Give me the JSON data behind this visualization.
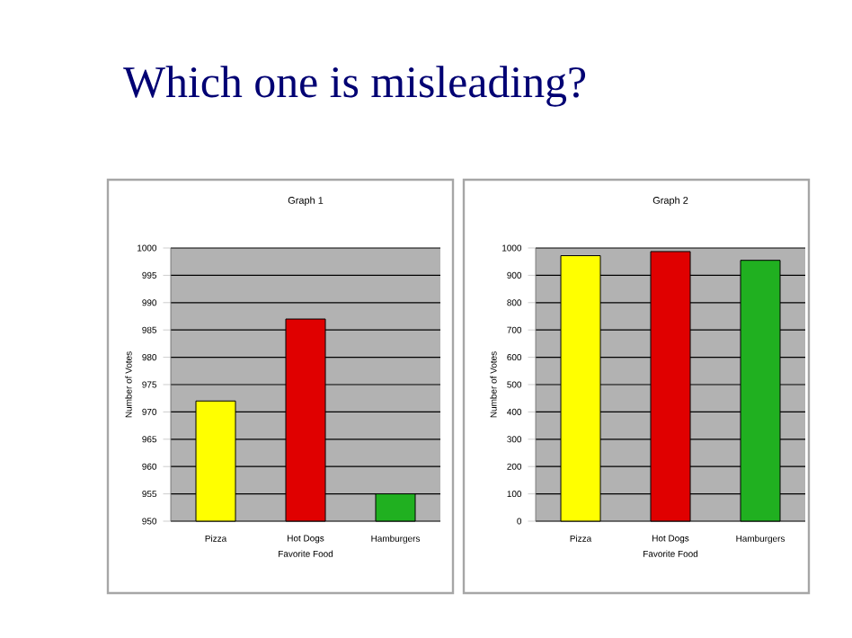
{
  "chart_data": [
    {
      "type": "bar",
      "title": "Graph 1",
      "xlabel": "Favorite Food",
      "ylabel": "Number of Votes",
      "annotations": [
        "Which one is misleading?"
      ],
      "categories": [
        "Pizza",
        "Hot Dogs",
        "Hamburgers"
      ],
      "values": [
        972,
        987,
        955
      ],
      "colors": [
        "#ffff00",
        "#e00000",
        "#20b020"
      ],
      "ylim": [
        950,
        1000
      ],
      "yticks": [
        950,
        955,
        960,
        965,
        970,
        975,
        980,
        985,
        990,
        995,
        1000
      ],
      "grid": "y"
    },
    {
      "type": "bar",
      "title": "Graph 2",
      "xlabel": "Favorite Food",
      "ylabel": "Number of Votes",
      "categories": [
        "Pizza",
        "Hot Dogs",
        "Hamburgers"
      ],
      "values": [
        972,
        987,
        955
      ],
      "colors": [
        "#ffff00",
        "#e00000",
        "#20b020"
      ],
      "ylim": [
        0,
        1000
      ],
      "yticks": [
        0,
        100,
        200,
        300,
        400,
        500,
        600,
        700,
        800,
        900,
        1000
      ],
      "grid": "y"
    }
  ]
}
